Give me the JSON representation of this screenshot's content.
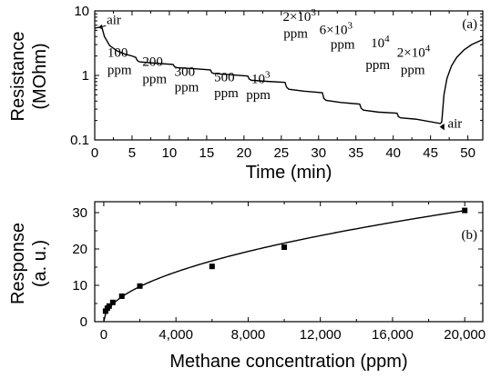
{
  "chart_data": [
    {
      "type": "line",
      "panel_label": "(a)",
      "xlabel": "Time (min)",
      "ylabel": "Resistance",
      "ylabel_unit": "(MOhm)",
      "x_scale": "linear",
      "y_scale": "log",
      "xlim": [
        0,
        52
      ],
      "ylim": [
        0.1,
        10
      ],
      "x_ticks": [
        0,
        5,
        10,
        15,
        20,
        25,
        30,
        35,
        40,
        45,
        50
      ],
      "x_tick_labels": [
        "0",
        "5",
        "10",
        "15",
        "20",
        "25",
        "30",
        "35",
        "40",
        "45",
        "50"
      ],
      "y_ticks": [
        0.1,
        1,
        10
      ],
      "y_tick_labels": [
        "0.1",
        "1",
        "10"
      ],
      "series": [
        {
          "x": [
            0.0,
            0.7,
            0.9,
            1.3,
            2.0,
            3.0,
            4.0,
            5.0,
            5.5,
            5.7,
            6.0,
            8.0,
            10.5,
            10.7,
            11.0,
            13.0,
            15.5,
            15.7,
            16.0,
            18.0,
            20.5,
            20.7,
            21.0,
            23.0,
            25.5,
            25.7,
            26.0,
            28.0,
            30.5,
            30.7,
            31.0,
            33.0,
            35.5,
            35.7,
            36.0,
            38.0,
            40.5,
            40.7,
            41.0,
            43.0,
            46.3,
            46.5,
            46.8,
            47.2,
            47.8,
            48.5,
            49.5,
            50.5,
            52.0
          ],
          "y": [
            5.4,
            5.6,
            5.9,
            4.0,
            2.9,
            2.4,
            2.15,
            2.0,
            1.9,
            1.7,
            1.62,
            1.55,
            1.48,
            1.36,
            1.32,
            1.28,
            1.22,
            1.1,
            1.07,
            1.03,
            0.98,
            0.88,
            0.84,
            0.81,
            0.78,
            0.66,
            0.61,
            0.57,
            0.54,
            0.44,
            0.41,
            0.38,
            0.36,
            0.31,
            0.29,
            0.27,
            0.26,
            0.23,
            0.22,
            0.21,
            0.18,
            0.19,
            0.5,
            0.9,
            1.4,
            1.9,
            2.5,
            3.0,
            3.6
          ]
        }
      ],
      "annotations": [
        {
          "text": "air",
          "x": 1.6,
          "y": 6.2
        },
        {
          "text": "air",
          "x": 47.3,
          "y": 0.155
        },
        {
          "text": "100",
          "x": 1.7,
          "y": 1.95
        },
        {
          "text": "ppm",
          "x": 1.7,
          "y": 1.05
        },
        {
          "text": "200",
          "x": 6.4,
          "y": 1.4
        },
        {
          "text": "ppm",
          "x": 6.4,
          "y": 0.76
        },
        {
          "text": "300",
          "x": 10.7,
          "y": 0.99
        },
        {
          "text": "ppm",
          "x": 10.7,
          "y": 0.57
        },
        {
          "text": "500",
          "x": 16.0,
          "y": 0.81
        },
        {
          "text": "ppm",
          "x": 16.0,
          "y": 0.46
        },
        {
          "text": "10",
          "sup": "3",
          "x": 21.0,
          "y": 0.76
        },
        {
          "text": "ppm",
          "x": 20.3,
          "y": 0.43
        },
        {
          "text": "2×10",
          "sup": "3",
          "x": 25.2,
          "y": 7.0
        },
        {
          "text": "ppm",
          "x": 25.3,
          "y": 3.85
        },
        {
          "text": "6×10",
          "sup": "3",
          "x": 30.1,
          "y": 4.4
        },
        {
          "text": "ppm",
          "x": 31.6,
          "y": 2.6
        },
        {
          "text": "10",
          "sup": "4",
          "x": 37.0,
          "y": 2.75
        },
        {
          "text": "ppm",
          "x": 36.3,
          "y": 1.25
        },
        {
          "text": "2×10",
          "sup": "4",
          "x": 40.5,
          "y": 1.95
        },
        {
          "text": "ppm",
          "x": 41.0,
          "y": 1.05
        }
      ]
    },
    {
      "type": "scatter",
      "panel_label": "(b)",
      "xlabel": "Methane concentration (ppm)",
      "ylabel": "Response",
      "ylabel_unit": "(a. u.)",
      "xlim": [
        -500,
        21000
      ],
      "ylim": [
        0,
        33
      ],
      "x_ticks": [
        0,
        4000,
        8000,
        12000,
        16000,
        20000
      ],
      "x_tick_labels": [
        "0",
        "4,000",
        "8,000",
        "12,000",
        "16,000",
        "20,000"
      ],
      "y_ticks": [
        0,
        10,
        20,
        30
      ],
      "y_tick_labels": [
        "0",
        "10",
        "20",
        "30"
      ],
      "series": [
        {
          "x": [
            100,
            200,
            300,
            500,
            1000,
            2000,
            6000,
            10000,
            20000
          ],
          "y": [
            2.9,
            3.7,
            4.3,
            5.3,
            7.0,
            9.8,
            15.2,
            20.5,
            30.6
          ]
        }
      ],
      "fit": {
        "form": "power",
        "a": 0.216,
        "b": 0.5
      }
    }
  ]
}
